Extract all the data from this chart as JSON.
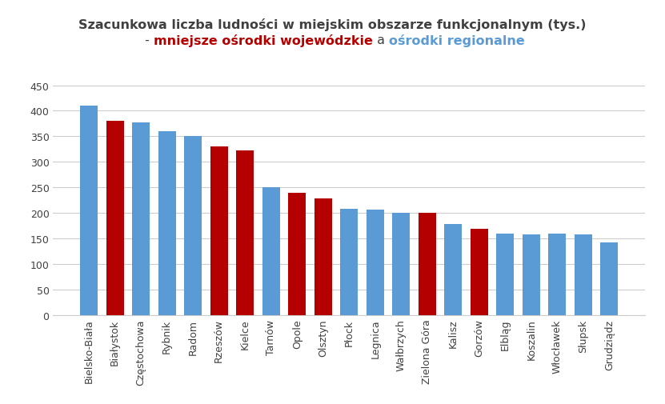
{
  "categories": [
    "Bielsko-Biała",
    "Białystok",
    "Częstochowa",
    "Rybnik",
    "Radom",
    "Rzeszów",
    "Kielce",
    "Tarnów",
    "Opole",
    "Olsztyn",
    "Płock",
    "Legnica",
    "Wałbrzych",
    "Zielona Góra",
    "Kalisz",
    "Gorzów",
    "Elbląg",
    "Koszalin",
    "Włocławek",
    "Słupsk",
    "Grudziądz"
  ],
  "values": [
    410,
    380,
    378,
    360,
    350,
    330,
    322,
    250,
    240,
    228,
    208,
    207,
    200,
    200,
    178,
    168,
    160,
    158,
    160,
    158,
    142
  ],
  "colors": [
    "#5b9bd5",
    "#b50000",
    "#5b9bd5",
    "#5b9bd5",
    "#5b9bd5",
    "#b50000",
    "#b50000",
    "#5b9bd5",
    "#b50000",
    "#b50000",
    "#5b9bd5",
    "#5b9bd5",
    "#5b9bd5",
    "#b50000",
    "#5b9bd5",
    "#b50000",
    "#5b9bd5",
    "#5b9bd5",
    "#5b9bd5",
    "#5b9bd5",
    "#5b9bd5"
  ],
  "title_line1": "Szacunkowa liczba ludności w miejskim obszarze funkcjonalnym (tys.)",
  "title_line2_part1": " - ",
  "title_line2_red": "mniejsze ośrodki wojewódzkie",
  "title_line2_mid": " a ",
  "title_line2_blue": "ośrodki regionalne",
  "title_color": "#404040",
  "red_color": "#b50000",
  "blue_color": "#5b9bd5",
  "ylim": [
    0,
    460
  ],
  "yticks": [
    0,
    50,
    100,
    150,
    200,
    250,
    300,
    350,
    400,
    450
  ],
  "background_color": "#ffffff",
  "grid_color": "#cccccc",
  "bar_width": 0.68,
  "title_fontsize": 11.5,
  "subtitle_fontsize": 11.5,
  "tick_fontsize": 9
}
